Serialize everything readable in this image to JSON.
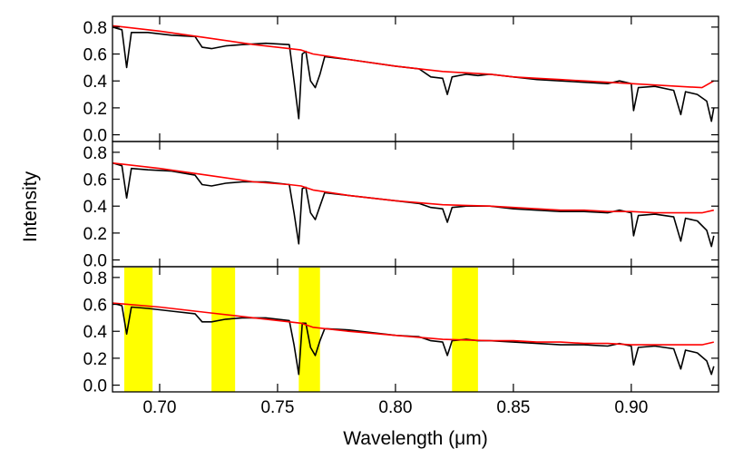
{
  "chart_data": {
    "type": "line",
    "xlabel": "Wavelength (μm)",
    "ylabel": "Intensity",
    "xlim": [
      0.68,
      0.937
    ],
    "xticks": [
      0.7,
      0.75,
      0.8,
      0.85,
      0.9
    ],
    "xtick_labels": [
      "0.70",
      "0.75",
      "0.80",
      "0.85",
      "0.90"
    ],
    "ylim": [
      -0.05,
      0.88
    ],
    "yticks": [
      0.0,
      0.2,
      0.4,
      0.6,
      0.8
    ],
    "ytick_labels": [
      "0.0",
      "0.2",
      "0.4",
      "0.6",
      "0.8"
    ],
    "grid": false,
    "colors": {
      "observed": "#000000",
      "model": "#ff0000",
      "highlight": "#ffff00"
    },
    "panels": [
      {
        "series": [
          {
            "color": "#000000",
            "x": [
              0.68,
              0.684,
              0.686,
              0.688,
              0.695,
              0.705,
              0.715,
              0.718,
              0.722,
              0.728,
              0.735,
              0.745,
              0.755,
              0.757,
              0.759,
              0.7605,
              0.762,
              0.764,
              0.766,
              0.768,
              0.77,
              0.78,
              0.8,
              0.81,
              0.815,
              0.82,
              0.822,
              0.824,
              0.83,
              0.835,
              0.84,
              0.85,
              0.86,
              0.87,
              0.88,
              0.89,
              0.895,
              0.9,
              0.901,
              0.903,
              0.91,
              0.918,
              0.921,
              0.923,
              0.928,
              0.932,
              0.934,
              0.935
            ],
            "y": [
              0.8,
              0.78,
              0.5,
              0.76,
              0.76,
              0.74,
              0.73,
              0.65,
              0.64,
              0.66,
              0.67,
              0.68,
              0.67,
              0.4,
              0.12,
              0.6,
              0.62,
              0.4,
              0.35,
              0.45,
              0.58,
              0.56,
              0.51,
              0.49,
              0.43,
              0.42,
              0.3,
              0.43,
              0.45,
              0.44,
              0.45,
              0.43,
              0.41,
              0.4,
              0.39,
              0.38,
              0.4,
              0.38,
              0.18,
              0.35,
              0.36,
              0.33,
              0.15,
              0.32,
              0.3,
              0.25,
              0.1,
              0.2
            ]
          },
          {
            "color": "#ff0000",
            "x": [
              0.68,
              0.7,
              0.72,
              0.74,
              0.755,
              0.76,
              0.765,
              0.78,
              0.8,
              0.82,
              0.84,
              0.85,
              0.86,
              0.87,
              0.88,
              0.89,
              0.9,
              0.91,
              0.92,
              0.93,
              0.935
            ],
            "y": [
              0.81,
              0.77,
              0.72,
              0.67,
              0.64,
              0.63,
              0.6,
              0.56,
              0.51,
              0.47,
              0.45,
              0.43,
              0.42,
              0.41,
              0.4,
              0.39,
              0.38,
              0.37,
              0.36,
              0.35,
              0.4
            ]
          }
        ]
      },
      {
        "series": [
          {
            "color": "#000000",
            "x": [
              0.68,
              0.684,
              0.686,
              0.688,
              0.695,
              0.705,
              0.715,
              0.718,
              0.722,
              0.728,
              0.735,
              0.745,
              0.755,
              0.757,
              0.759,
              0.7605,
              0.762,
              0.764,
              0.766,
              0.768,
              0.77,
              0.78,
              0.8,
              0.81,
              0.815,
              0.82,
              0.822,
              0.824,
              0.83,
              0.835,
              0.84,
              0.85,
              0.86,
              0.87,
              0.88,
              0.89,
              0.895,
              0.9,
              0.901,
              0.903,
              0.91,
              0.918,
              0.921,
              0.923,
              0.928,
              0.932,
              0.934,
              0.935
            ],
            "y": [
              0.72,
              0.7,
              0.46,
              0.68,
              0.67,
              0.66,
              0.63,
              0.56,
              0.55,
              0.57,
              0.58,
              0.58,
              0.56,
              0.35,
              0.12,
              0.53,
              0.54,
              0.35,
              0.3,
              0.4,
              0.5,
              0.48,
              0.44,
              0.42,
              0.39,
              0.38,
              0.28,
              0.39,
              0.4,
              0.4,
              0.4,
              0.38,
              0.37,
              0.36,
              0.36,
              0.35,
              0.37,
              0.35,
              0.18,
              0.33,
              0.34,
              0.32,
              0.14,
              0.31,
              0.29,
              0.22,
              0.1,
              0.18
            ]
          },
          {
            "color": "#ff0000",
            "x": [
              0.68,
              0.7,
              0.72,
              0.74,
              0.755,
              0.76,
              0.765,
              0.78,
              0.8,
              0.82,
              0.84,
              0.85,
              0.86,
              0.87,
              0.88,
              0.89,
              0.9,
              0.91,
              0.92,
              0.93,
              0.935
            ],
            "y": [
              0.72,
              0.68,
              0.63,
              0.58,
              0.56,
              0.55,
              0.52,
              0.48,
              0.44,
              0.41,
              0.4,
              0.39,
              0.38,
              0.37,
              0.37,
              0.36,
              0.36,
              0.35,
              0.35,
              0.35,
              0.37
            ]
          }
        ]
      },
      {
        "highlight_bands": [
          [
            0.685,
            0.697
          ],
          [
            0.722,
            0.732
          ],
          [
            0.759,
            0.768
          ],
          [
            0.824,
            0.835
          ]
        ],
        "series": [
          {
            "color": "#000000",
            "x": [
              0.68,
              0.684,
              0.686,
              0.688,
              0.695,
              0.705,
              0.715,
              0.718,
              0.722,
              0.728,
              0.735,
              0.745,
              0.755,
              0.757,
              0.759,
              0.7605,
              0.762,
              0.764,
              0.766,
              0.768,
              0.77,
              0.78,
              0.8,
              0.81,
              0.815,
              0.82,
              0.822,
              0.824,
              0.83,
              0.835,
              0.84,
              0.85,
              0.86,
              0.87,
              0.88,
              0.89,
              0.895,
              0.9,
              0.901,
              0.903,
              0.91,
              0.918,
              0.921,
              0.923,
              0.928,
              0.932,
              0.934,
              0.935
            ],
            "y": [
              0.61,
              0.59,
              0.38,
              0.58,
              0.57,
              0.55,
              0.53,
              0.47,
              0.47,
              0.49,
              0.5,
              0.5,
              0.48,
              0.3,
              0.08,
              0.46,
              0.46,
              0.28,
              0.22,
              0.33,
              0.42,
              0.41,
              0.37,
              0.36,
              0.33,
              0.32,
              0.22,
              0.33,
              0.34,
              0.33,
              0.33,
              0.32,
              0.31,
              0.3,
              0.3,
              0.29,
              0.31,
              0.29,
              0.15,
              0.28,
              0.29,
              0.27,
              0.12,
              0.26,
              0.24,
              0.18,
              0.08,
              0.14
            ]
          },
          {
            "color": "#ff0000",
            "x": [
              0.68,
              0.7,
              0.72,
              0.74,
              0.755,
              0.76,
              0.765,
              0.78,
              0.8,
              0.82,
              0.84,
              0.85,
              0.86,
              0.87,
              0.88,
              0.89,
              0.9,
              0.91,
              0.92,
              0.93,
              0.935
            ],
            "y": [
              0.61,
              0.58,
              0.54,
              0.5,
              0.47,
              0.46,
              0.43,
              0.4,
              0.37,
              0.34,
              0.33,
              0.33,
              0.32,
              0.32,
              0.31,
              0.31,
              0.3,
              0.3,
              0.3,
              0.3,
              0.32
            ]
          }
        ]
      }
    ]
  }
}
